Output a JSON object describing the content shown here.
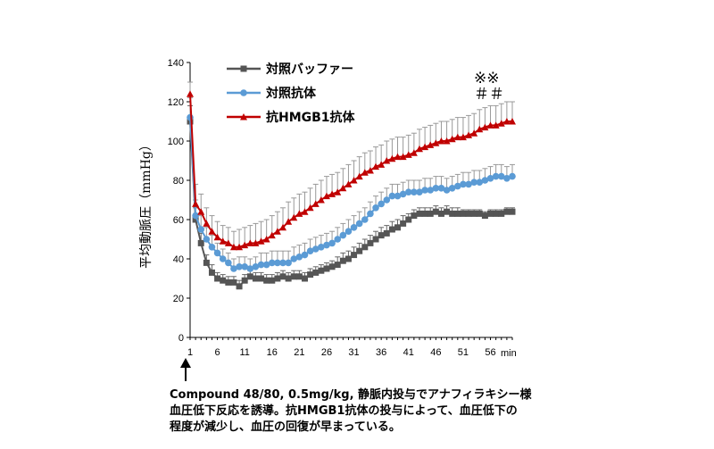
{
  "chart_data": {
    "type": "line",
    "title": "",
    "xlabel": "min",
    "ylabel": "平均動脈圧（mmHg）",
    "xlim": [
      1,
      60
    ],
    "ylim": [
      0,
      140
    ],
    "x_ticks": [
      1,
      6,
      11,
      16,
      21,
      26,
      31,
      36,
      41,
      46,
      51,
      56
    ],
    "y_ticks": [
      0,
      20,
      40,
      60,
      80,
      100,
      120,
      140
    ],
    "grid": false,
    "legend_position": "top-left",
    "x": [
      1,
      2,
      3,
      4,
      5,
      6,
      7,
      8,
      9,
      10,
      11,
      12,
      13,
      14,
      15,
      16,
      17,
      18,
      19,
      20,
      21,
      22,
      23,
      24,
      25,
      26,
      27,
      28,
      29,
      30,
      31,
      32,
      33,
      34,
      35,
      36,
      37,
      38,
      39,
      40,
      41,
      42,
      43,
      44,
      45,
      46,
      47,
      48,
      49,
      50,
      51,
      52,
      53,
      54,
      55,
      56,
      57,
      58,
      59,
      60
    ],
    "series": [
      {
        "name": "対照バッファー",
        "color": "#555555",
        "marker": "square",
        "values": [
          110,
          60,
          48,
          38,
          33,
          30,
          29,
          28,
          28,
          26,
          29,
          31,
          30,
          30,
          29,
          29,
          30,
          31,
          30,
          31,
          31,
          30,
          32,
          33,
          34,
          35,
          36,
          37,
          39,
          40,
          42,
          44,
          46,
          48,
          50,
          52,
          53,
          55,
          56,
          58,
          60,
          62,
          63,
          63,
          63,
          64,
          63,
          64,
          63,
          63,
          63,
          63,
          63,
          63,
          62,
          63,
          63,
          63,
          64,
          64
        ],
        "error": [
          8,
          6,
          5,
          4,
          4,
          3,
          3,
          3,
          3,
          3,
          3,
          3,
          3,
          3,
          3,
          3,
          3,
          3,
          3,
          3,
          3,
          3,
          3,
          3,
          3,
          3,
          3,
          4,
          4,
          4,
          4,
          4,
          4,
          4,
          4,
          4,
          4,
          4,
          4,
          4,
          3,
          3,
          3,
          3,
          3,
          3,
          3,
          3,
          3,
          3,
          2,
          2,
          2,
          2,
          2,
          2,
          2,
          2,
          2,
          2
        ]
      },
      {
        "name": "対照抗体",
        "color": "#5b9bd5",
        "marker": "circle",
        "values": [
          112,
          62,
          55,
          50,
          46,
          43,
          40,
          38,
          35,
          36,
          36,
          35,
          36,
          37,
          37,
          38,
          38,
          38,
          38,
          40,
          41,
          42,
          44,
          45,
          46,
          47,
          48,
          50,
          52,
          54,
          56,
          58,
          60,
          63,
          66,
          68,
          70,
          72,
          72,
          73,
          74,
          74,
          74,
          75,
          75,
          76,
          76,
          75,
          76,
          77,
          78,
          78,
          79,
          79,
          80,
          81,
          82,
          82,
          81,
          82
        ],
        "error": [
          10,
          8,
          7,
          6,
          6,
          5,
          5,
          5,
          5,
          5,
          5,
          5,
          5,
          6,
          6,
          6,
          6,
          6,
          6,
          6,
          6,
          6,
          6,
          6,
          6,
          6,
          6,
          6,
          6,
          6,
          6,
          6,
          6,
          6,
          6,
          6,
          6,
          6,
          6,
          6,
          6,
          6,
          6,
          6,
          6,
          6,
          6,
          6,
          6,
          6,
          6,
          6,
          6,
          6,
          6,
          6,
          6,
          6,
          6,
          6
        ]
      },
      {
        "name": "抗HMGB1抗体",
        "color": "#c00000",
        "marker": "triangle",
        "values": [
          124,
          68,
          64,
          58,
          54,
          51,
          49,
          48,
          46,
          46,
          47,
          48,
          48,
          49,
          50,
          52,
          54,
          56,
          59,
          61,
          63,
          64,
          66,
          68,
          70,
          72,
          73,
          74,
          76,
          78,
          80,
          82,
          84,
          85,
          87,
          88,
          90,
          91,
          92,
          92,
          93,
          94,
          96,
          97,
          98,
          99,
          100,
          100,
          101,
          102,
          102,
          103,
          104,
          106,
          107,
          108,
          108,
          109,
          110,
          110
        ],
        "error": [
          6,
          10,
          9,
          8,
          8,
          8,
          8,
          8,
          8,
          9,
          9,
          9,
          10,
          10,
          10,
          10,
          10,
          10,
          10,
          10,
          10,
          10,
          10,
          10,
          10,
          10,
          10,
          10,
          10,
          10,
          10,
          10,
          10,
          10,
          10,
          10,
          10,
          10,
          10,
          10,
          10,
          10,
          10,
          10,
          10,
          10,
          10,
          10,
          10,
          10,
          10,
          10,
          10,
          10,
          10,
          10,
          10,
          10,
          10,
          10
        ]
      }
    ],
    "significance_marks": [
      "※※",
      "＃＃"
    ]
  },
  "caption": {
    "line1": "Compound 48/80, 0.5mg/kg, 静脈内投与でアナフィラキシー様",
    "line2": "血圧低下反応を誘導。抗HMGB1抗体の投与によって、血圧低下の",
    "line3": "程度が減少し、血圧の回復が早まっている。"
  }
}
